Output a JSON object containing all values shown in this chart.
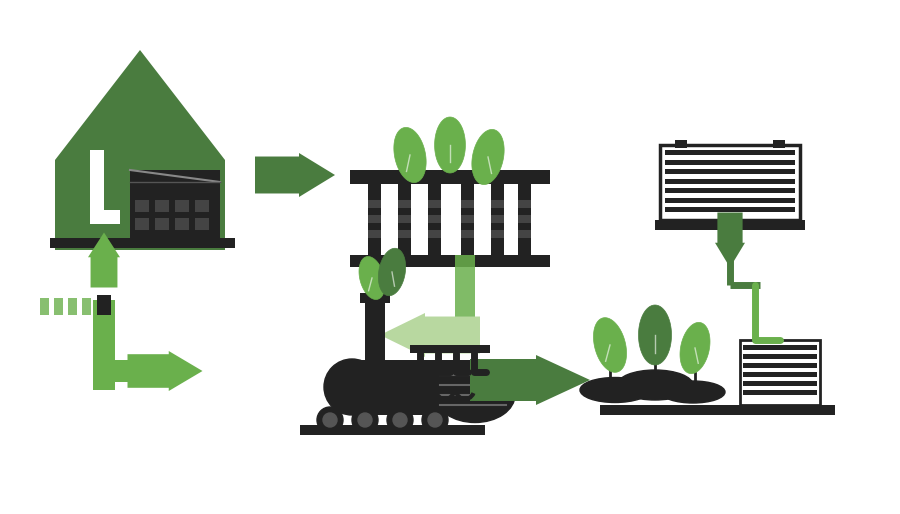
{
  "background_color": "#ffffff",
  "dark_green": "#4a7c3f",
  "light_green": "#6ab04c",
  "dark_color": "#222222",
  "figsize": [
    9.0,
    5.14
  ],
  "dpi": 100
}
